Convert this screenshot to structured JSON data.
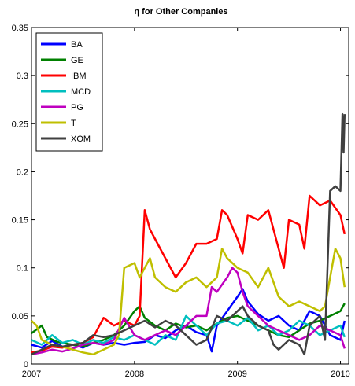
{
  "chart_data": {
    "type": "line",
    "title": "η for Other Companies",
    "xlabel": "",
    "ylabel": "",
    "xlim": [
      2007.0,
      2010.08
    ],
    "ylim": [
      0,
      0.35
    ],
    "x_ticks": [
      2007,
      2008,
      2009,
      2010
    ],
    "y_ticks": [
      0,
      0.05,
      0.1,
      0.15,
      0.2,
      0.25,
      0.3,
      0.35
    ],
    "x_tick_labels": [
      "2007",
      "2008",
      "2009",
      "2010"
    ],
    "y_tick_labels": [
      "0",
      "0.05",
      "0.1",
      "0.15",
      "0.2",
      "0.25",
      "0.3",
      "0.35"
    ],
    "grid": false,
    "legend_position": "top-left",
    "series": [
      {
        "name": "BA",
        "color": "#0000ff",
        "points": [
          [
            2007.0,
            0.02
          ],
          [
            2007.1,
            0.017
          ],
          [
            2007.2,
            0.024
          ],
          [
            2007.3,
            0.018
          ],
          [
            2007.4,
            0.02
          ],
          [
            2007.5,
            0.017
          ],
          [
            2007.6,
            0.022
          ],
          [
            2007.7,
            0.02
          ],
          [
            2007.8,
            0.022
          ],
          [
            2007.9,
            0.02
          ],
          [
            2008.0,
            0.022
          ],
          [
            2008.1,
            0.023
          ],
          [
            2008.2,
            0.03
          ],
          [
            2008.3,
            0.027
          ],
          [
            2008.4,
            0.035
          ],
          [
            2008.5,
            0.04
          ],
          [
            2008.6,
            0.033
          ],
          [
            2008.7,
            0.03
          ],
          [
            2008.75,
            0.013
          ],
          [
            2008.8,
            0.04
          ],
          [
            2008.9,
            0.055
          ],
          [
            2009.0,
            0.07
          ],
          [
            2009.05,
            0.078
          ],
          [
            2009.1,
            0.065
          ],
          [
            2009.2,
            0.052
          ],
          [
            2009.3,
            0.045
          ],
          [
            2009.4,
            0.05
          ],
          [
            2009.5,
            0.04
          ],
          [
            2009.6,
            0.035
          ],
          [
            2009.7,
            0.055
          ],
          [
            2009.8,
            0.05
          ],
          [
            2009.9,
            0.03
          ],
          [
            2010.0,
            0.025
          ],
          [
            2010.04,
            0.045
          ]
        ]
      },
      {
        "name": "GE",
        "color": "#008000",
        "points": [
          [
            2007.0,
            0.032
          ],
          [
            2007.1,
            0.04
          ],
          [
            2007.15,
            0.028
          ],
          [
            2007.25,
            0.023
          ],
          [
            2007.4,
            0.02
          ],
          [
            2007.5,
            0.018
          ],
          [
            2007.6,
            0.022
          ],
          [
            2007.7,
            0.025
          ],
          [
            2007.8,
            0.03
          ],
          [
            2007.9,
            0.04
          ],
          [
            2008.0,
            0.055
          ],
          [
            2008.05,
            0.06
          ],
          [
            2008.1,
            0.048
          ],
          [
            2008.2,
            0.04
          ],
          [
            2008.3,
            0.035
          ],
          [
            2008.4,
            0.042
          ],
          [
            2008.5,
            0.038
          ],
          [
            2008.6,
            0.04
          ],
          [
            2008.7,
            0.035
          ],
          [
            2008.8,
            0.042
          ],
          [
            2008.9,
            0.048
          ],
          [
            2009.0,
            0.05
          ],
          [
            2009.1,
            0.045
          ],
          [
            2009.2,
            0.04
          ],
          [
            2009.3,
            0.035
          ],
          [
            2009.4,
            0.03
          ],
          [
            2009.5,
            0.028
          ],
          [
            2009.6,
            0.035
          ],
          [
            2009.7,
            0.042
          ],
          [
            2009.8,
            0.045
          ],
          [
            2009.9,
            0.05
          ],
          [
            2010.0,
            0.055
          ],
          [
            2010.04,
            0.063
          ]
        ]
      },
      {
        "name": "IBM",
        "color": "#ff0000",
        "points": [
          [
            2007.0,
            0.012
          ],
          [
            2007.1,
            0.014
          ],
          [
            2007.2,
            0.018
          ],
          [
            2007.3,
            0.017
          ],
          [
            2007.4,
            0.02
          ],
          [
            2007.5,
            0.022
          ],
          [
            2007.6,
            0.028
          ],
          [
            2007.7,
            0.048
          ],
          [
            2007.8,
            0.04
          ],
          [
            2007.9,
            0.045
          ],
          [
            2008.0,
            0.04
          ],
          [
            2008.05,
            0.05
          ],
          [
            2008.1,
            0.16
          ],
          [
            2008.15,
            0.14
          ],
          [
            2008.2,
            0.13
          ],
          [
            2008.3,
            0.11
          ],
          [
            2008.4,
            0.09
          ],
          [
            2008.5,
            0.105
          ],
          [
            2008.6,
            0.125
          ],
          [
            2008.7,
            0.125
          ],
          [
            2008.8,
            0.13
          ],
          [
            2008.85,
            0.16
          ],
          [
            2008.9,
            0.155
          ],
          [
            2009.0,
            0.13
          ],
          [
            2009.05,
            0.115
          ],
          [
            2009.1,
            0.155
          ],
          [
            2009.2,
            0.15
          ],
          [
            2009.3,
            0.16
          ],
          [
            2009.4,
            0.12
          ],
          [
            2009.45,
            0.1
          ],
          [
            2009.5,
            0.15
          ],
          [
            2009.6,
            0.145
          ],
          [
            2009.65,
            0.12
          ],
          [
            2009.7,
            0.175
          ],
          [
            2009.8,
            0.165
          ],
          [
            2009.9,
            0.17
          ],
          [
            2010.0,
            0.155
          ],
          [
            2010.04,
            0.135
          ]
        ]
      },
      {
        "name": "MCD",
        "color": "#00bfbf",
        "points": [
          [
            2007.0,
            0.025
          ],
          [
            2007.1,
            0.02
          ],
          [
            2007.2,
            0.03
          ],
          [
            2007.3,
            0.022
          ],
          [
            2007.4,
            0.025
          ],
          [
            2007.5,
            0.02
          ],
          [
            2007.6,
            0.025
          ],
          [
            2007.7,
            0.022
          ],
          [
            2007.8,
            0.028
          ],
          [
            2007.9,
            0.025
          ],
          [
            2008.0,
            0.03
          ],
          [
            2008.1,
            0.025
          ],
          [
            2008.2,
            0.02
          ],
          [
            2008.3,
            0.03
          ],
          [
            2008.4,
            0.025
          ],
          [
            2008.5,
            0.05
          ],
          [
            2008.6,
            0.04
          ],
          [
            2008.7,
            0.03
          ],
          [
            2008.8,
            0.042
          ],
          [
            2008.9,
            0.045
          ],
          [
            2009.0,
            0.04
          ],
          [
            2009.1,
            0.048
          ],
          [
            2009.2,
            0.035
          ],
          [
            2009.3,
            0.04
          ],
          [
            2009.4,
            0.03
          ],
          [
            2009.5,
            0.035
          ],
          [
            2009.6,
            0.045
          ],
          [
            2009.7,
            0.04
          ],
          [
            2009.8,
            0.03
          ],
          [
            2009.9,
            0.035
          ],
          [
            2010.0,
            0.04
          ],
          [
            2010.04,
            0.028
          ]
        ]
      },
      {
        "name": "PG",
        "color": "#bf00bf",
        "points": [
          [
            2007.0,
            0.01
          ],
          [
            2007.1,
            0.012
          ],
          [
            2007.2,
            0.015
          ],
          [
            2007.3,
            0.013
          ],
          [
            2007.4,
            0.016
          ],
          [
            2007.5,
            0.02
          ],
          [
            2007.6,
            0.022
          ],
          [
            2007.7,
            0.02
          ],
          [
            2007.8,
            0.025
          ],
          [
            2007.9,
            0.048
          ],
          [
            2008.0,
            0.03
          ],
          [
            2008.1,
            0.025
          ],
          [
            2008.2,
            0.03
          ],
          [
            2008.3,
            0.035
          ],
          [
            2008.4,
            0.03
          ],
          [
            2008.5,
            0.04
          ],
          [
            2008.6,
            0.05
          ],
          [
            2008.7,
            0.05
          ],
          [
            2008.75,
            0.08
          ],
          [
            2008.8,
            0.075
          ],
          [
            2008.9,
            0.09
          ],
          [
            2008.95,
            0.1
          ],
          [
            2009.0,
            0.095
          ],
          [
            2009.05,
            0.075
          ],
          [
            2009.1,
            0.06
          ],
          [
            2009.2,
            0.05
          ],
          [
            2009.3,
            0.04
          ],
          [
            2009.4,
            0.035
          ],
          [
            2009.5,
            0.03
          ],
          [
            2009.6,
            0.025
          ],
          [
            2009.7,
            0.03
          ],
          [
            2009.8,
            0.04
          ],
          [
            2009.9,
            0.035
          ],
          [
            2010.0,
            0.03
          ],
          [
            2010.04,
            0.016
          ]
        ]
      },
      {
        "name": "T",
        "color": "#bfbf00",
        "points": [
          [
            2007.0,
            0.045
          ],
          [
            2007.05,
            0.04
          ],
          [
            2007.1,
            0.025
          ],
          [
            2007.2,
            0.02
          ],
          [
            2007.3,
            0.018
          ],
          [
            2007.4,
            0.015
          ],
          [
            2007.5,
            0.012
          ],
          [
            2007.6,
            0.01
          ],
          [
            2007.7,
            0.015
          ],
          [
            2007.8,
            0.02
          ],
          [
            2007.85,
            0.03
          ],
          [
            2007.9,
            0.1
          ],
          [
            2008.0,
            0.105
          ],
          [
            2008.05,
            0.09
          ],
          [
            2008.1,
            0.1
          ],
          [
            2008.15,
            0.11
          ],
          [
            2008.2,
            0.09
          ],
          [
            2008.3,
            0.08
          ],
          [
            2008.4,
            0.075
          ],
          [
            2008.5,
            0.085
          ],
          [
            2008.6,
            0.09
          ],
          [
            2008.7,
            0.08
          ],
          [
            2008.8,
            0.09
          ],
          [
            2008.85,
            0.12
          ],
          [
            2008.9,
            0.11
          ],
          [
            2009.0,
            0.1
          ],
          [
            2009.1,
            0.095
          ],
          [
            2009.2,
            0.08
          ],
          [
            2009.3,
            0.1
          ],
          [
            2009.35,
            0.085
          ],
          [
            2009.4,
            0.07
          ],
          [
            2009.5,
            0.06
          ],
          [
            2009.6,
            0.065
          ],
          [
            2009.7,
            0.06
          ],
          [
            2009.8,
            0.055
          ],
          [
            2009.85,
            0.06
          ],
          [
            2009.9,
            0.09
          ],
          [
            2009.95,
            0.12
          ],
          [
            2010.0,
            0.11
          ],
          [
            2010.04,
            0.08
          ]
        ]
      },
      {
        "name": "XOM",
        "color": "#404040",
        "points": [
          [
            2007.0,
            0.01
          ],
          [
            2007.1,
            0.015
          ],
          [
            2007.2,
            0.02
          ],
          [
            2007.3,
            0.018
          ],
          [
            2007.4,
            0.02
          ],
          [
            2007.5,
            0.022
          ],
          [
            2007.6,
            0.03
          ],
          [
            2007.7,
            0.028
          ],
          [
            2007.8,
            0.03
          ],
          [
            2007.9,
            0.035
          ],
          [
            2008.0,
            0.04
          ],
          [
            2008.1,
            0.045
          ],
          [
            2008.2,
            0.038
          ],
          [
            2008.3,
            0.045
          ],
          [
            2008.4,
            0.04
          ],
          [
            2008.5,
            0.03
          ],
          [
            2008.6,
            0.02
          ],
          [
            2008.7,
            0.025
          ],
          [
            2008.8,
            0.05
          ],
          [
            2008.9,
            0.045
          ],
          [
            2009.0,
            0.055
          ],
          [
            2009.05,
            0.06
          ],
          [
            2009.1,
            0.05
          ],
          [
            2009.2,
            0.04
          ],
          [
            2009.3,
            0.035
          ],
          [
            2009.35,
            0.02
          ],
          [
            2009.4,
            0.015
          ],
          [
            2009.5,
            0.025
          ],
          [
            2009.6,
            0.02
          ],
          [
            2009.65,
            0.01
          ],
          [
            2009.7,
            0.04
          ],
          [
            2009.8,
            0.05
          ],
          [
            2009.85,
            0.025
          ],
          [
            2009.9,
            0.18
          ],
          [
            2009.95,
            0.185
          ],
          [
            2010.0,
            0.18
          ],
          [
            2010.02,
            0.26
          ],
          [
            2010.03,
            0.22
          ],
          [
            2010.04,
            0.26
          ]
        ]
      }
    ]
  }
}
